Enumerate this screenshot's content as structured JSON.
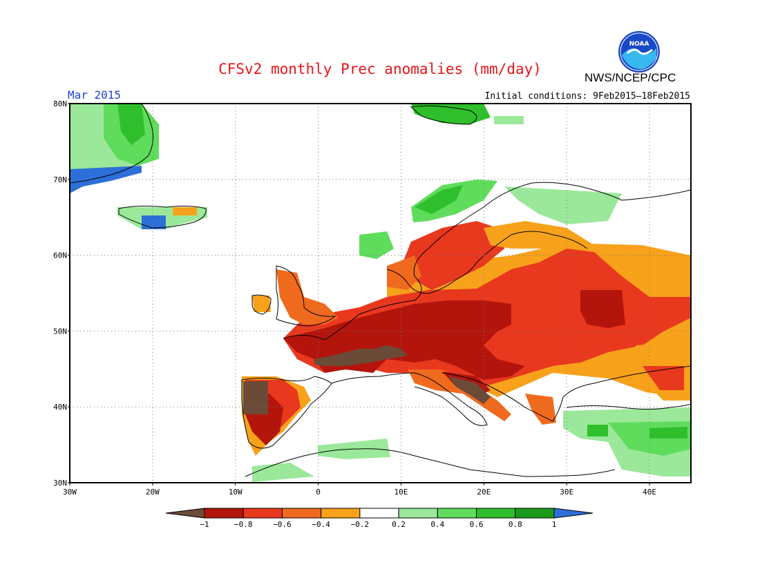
{
  "header": {
    "title": "CFSv2 monthly Prec anomalies (mm/day)",
    "agency": "NWS/NCEP/CPC",
    "logo_text": "NOAA",
    "period": "Mar 2015",
    "initial_conditions": "Initial conditions: 9Feb2015–18Feb2015"
  },
  "map": {
    "lon_range": [
      -30,
      45
    ],
    "lat_range": [
      30,
      80
    ],
    "lat_ticks": [
      {
        "value": 80,
        "label": "80N"
      },
      {
        "value": 70,
        "label": "70N"
      },
      {
        "value": 60,
        "label": "60N"
      },
      {
        "value": 50,
        "label": "50N"
      },
      {
        "value": 40,
        "label": "40N"
      },
      {
        "value": 30,
        "label": "30N"
      }
    ],
    "lon_ticks": [
      {
        "value": -30,
        "label": "30W"
      },
      {
        "value": -20,
        "label": "20W"
      },
      {
        "value": -10,
        "label": "10W"
      },
      {
        "value": 0,
        "label": "0"
      },
      {
        "value": 10,
        "label": "10E"
      },
      {
        "value": 20,
        "label": "20E"
      },
      {
        "value": 30,
        "label": "30E"
      },
      {
        "value": 40,
        "label": "40E"
      }
    ],
    "gridlines": "dotted"
  },
  "colorbar": {
    "labels": [
      "−1",
      "−0.8",
      "−0.6",
      "−0.4",
      "−0.2",
      "0.2",
      "0.4",
      "0.6",
      "0.8",
      "1"
    ],
    "colors": [
      "#6b4a38",
      "#b3150c",
      "#e8381e",
      "#f06a1e",
      "#f7a21a",
      "#ffffff",
      "#9be89a",
      "#5fdc5c",
      "#2fbf2c",
      "#1a9a1a",
      "#2d6fd8"
    ]
  },
  "colors": {
    "title": "#e8141a",
    "period": "#1f3fd8"
  }
}
